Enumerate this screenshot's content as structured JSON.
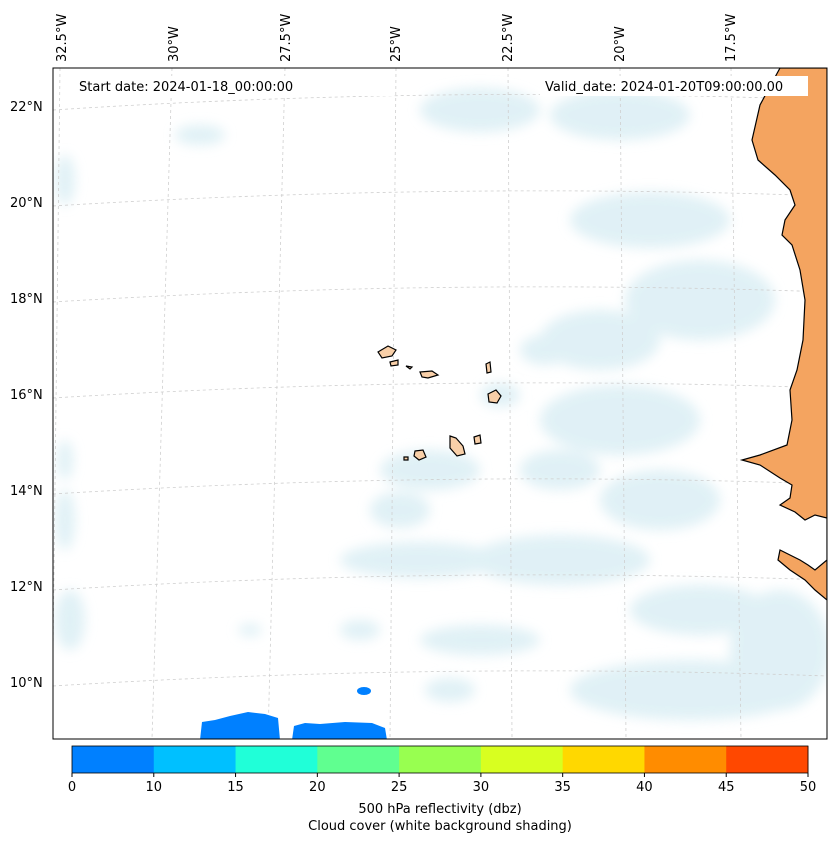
{
  "map": {
    "start_date": "Start date: 2024-01-18_00:00:00",
    "valid_date": "Valid_date: 2024-01-20T09:00:00.00",
    "lon_labels": [
      "32.5°W",
      "30°W",
      "27.5°W",
      "25°W",
      "22.5°W",
      "20°W",
      "17.5°W"
    ],
    "lat_labels": [
      "22°N",
      "20°N",
      "18°N",
      "16°N",
      "14°N",
      "12°N",
      "10°N"
    ],
    "grid": true,
    "colors": {
      "land_continent": "#f4a460",
      "land_island": "#f8cfa8",
      "cloud_shading": "#d6ecf3",
      "reflectivity_blue": "#0080ff"
    }
  },
  "colorbar": {
    "ticks": [
      "0",
      "10",
      "15",
      "20",
      "25",
      "30",
      "35",
      "40",
      "45",
      "50"
    ],
    "colors": [
      "#0080ff",
      "#00c0ff",
      "#20ffd8",
      "#60ff90",
      "#98ff50",
      "#d8ff20",
      "#ffd800",
      "#ff8c00",
      "#ff4800"
    ],
    "label_line1": "500 hPa reflectivity (dbz)",
    "label_line2": "Cloud cover (white background shading)"
  }
}
